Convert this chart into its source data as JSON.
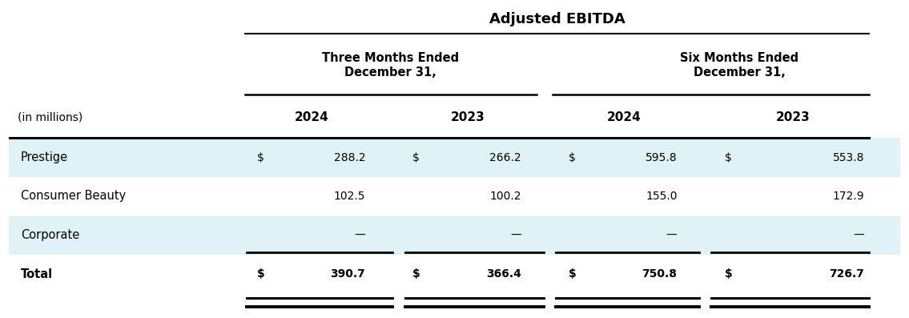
{
  "title": "Adjusted EBITDA",
  "col_group1": "Three Months Ended\nDecember 31,",
  "col_group2": "Six Months Ended\nDecember 31,",
  "subheader": "(in millions)",
  "year_headers": [
    "2024",
    "2023",
    "2024",
    "2023"
  ],
  "rows": [
    {
      "label": "Prestige",
      "values": [
        "$",
        "288.2",
        "$",
        "266.2",
        "$",
        "595.8",
        "$",
        "553.8"
      ],
      "bold": false,
      "shaded": true
    },
    {
      "label": "Consumer Beauty",
      "values": [
        "",
        "102.5",
        "",
        "100.2",
        "",
        "155.0",
        "",
        "172.9"
      ],
      "bold": false,
      "shaded": false
    },
    {
      "label": "Corporate",
      "values": [
        "",
        "—",
        "",
        "—",
        "",
        "—",
        "",
        "—"
      ],
      "bold": false,
      "shaded": true
    },
    {
      "label": "Total",
      "values": [
        "$",
        "390.7",
        "$",
        "366.4",
        "$",
        "750.8",
        "$",
        "726.7"
      ],
      "bold": true,
      "shaded": false
    }
  ],
  "background_color": "#ffffff",
  "shaded_color": "#dff2f5",
  "line_color": "#000000",
  "font_color": "#000000",
  "figsize": [
    11.35,
    3.97
  ],
  "dpi": 100
}
